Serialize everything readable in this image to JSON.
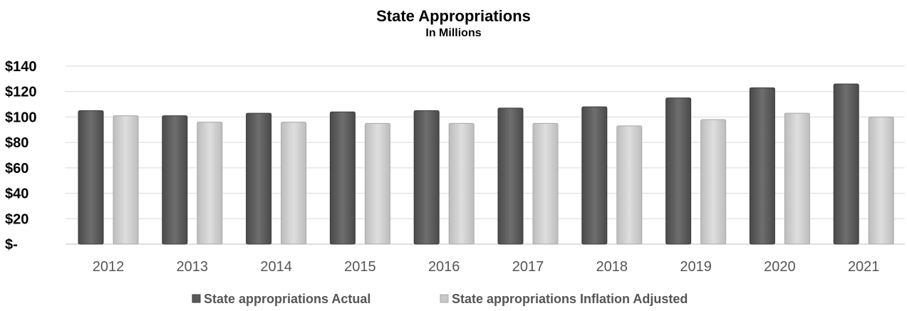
{
  "chart_data": {
    "type": "bar",
    "title": "State Appropriations",
    "subtitle": "In Millions",
    "xlabel": "",
    "ylabel": "",
    "categories": [
      "2012",
      "2013",
      "2014",
      "2015",
      "2016",
      "2017",
      "2018",
      "2019",
      "2020",
      "2021"
    ],
    "series": [
      {
        "name": "State appropriations Actual",
        "color": "#595959",
        "values": [
          105,
          101,
          103,
          104,
          105,
          107,
          108,
          115,
          123,
          126
        ]
      },
      {
        "name": "State appropriations Inflation Adjusted",
        "color": "#c8c8c8",
        "values": [
          101,
          96,
          96,
          95,
          95,
          95,
          93,
          98,
          103,
          100
        ]
      }
    ],
    "ylim": [
      0,
      140
    ],
    "yticks": [
      {
        "value": 0,
        "label": "$-"
      },
      {
        "value": 20,
        "label": "$20"
      },
      {
        "value": 40,
        "label": "$40"
      },
      {
        "value": 60,
        "label": "$60"
      },
      {
        "value": 80,
        "label": "$80"
      },
      {
        "value": 100,
        "label": "$100"
      },
      {
        "value": 120,
        "label": "$120"
      },
      {
        "value": 140,
        "label": "$140"
      }
    ],
    "grid": true,
    "legend_position": "bottom"
  }
}
